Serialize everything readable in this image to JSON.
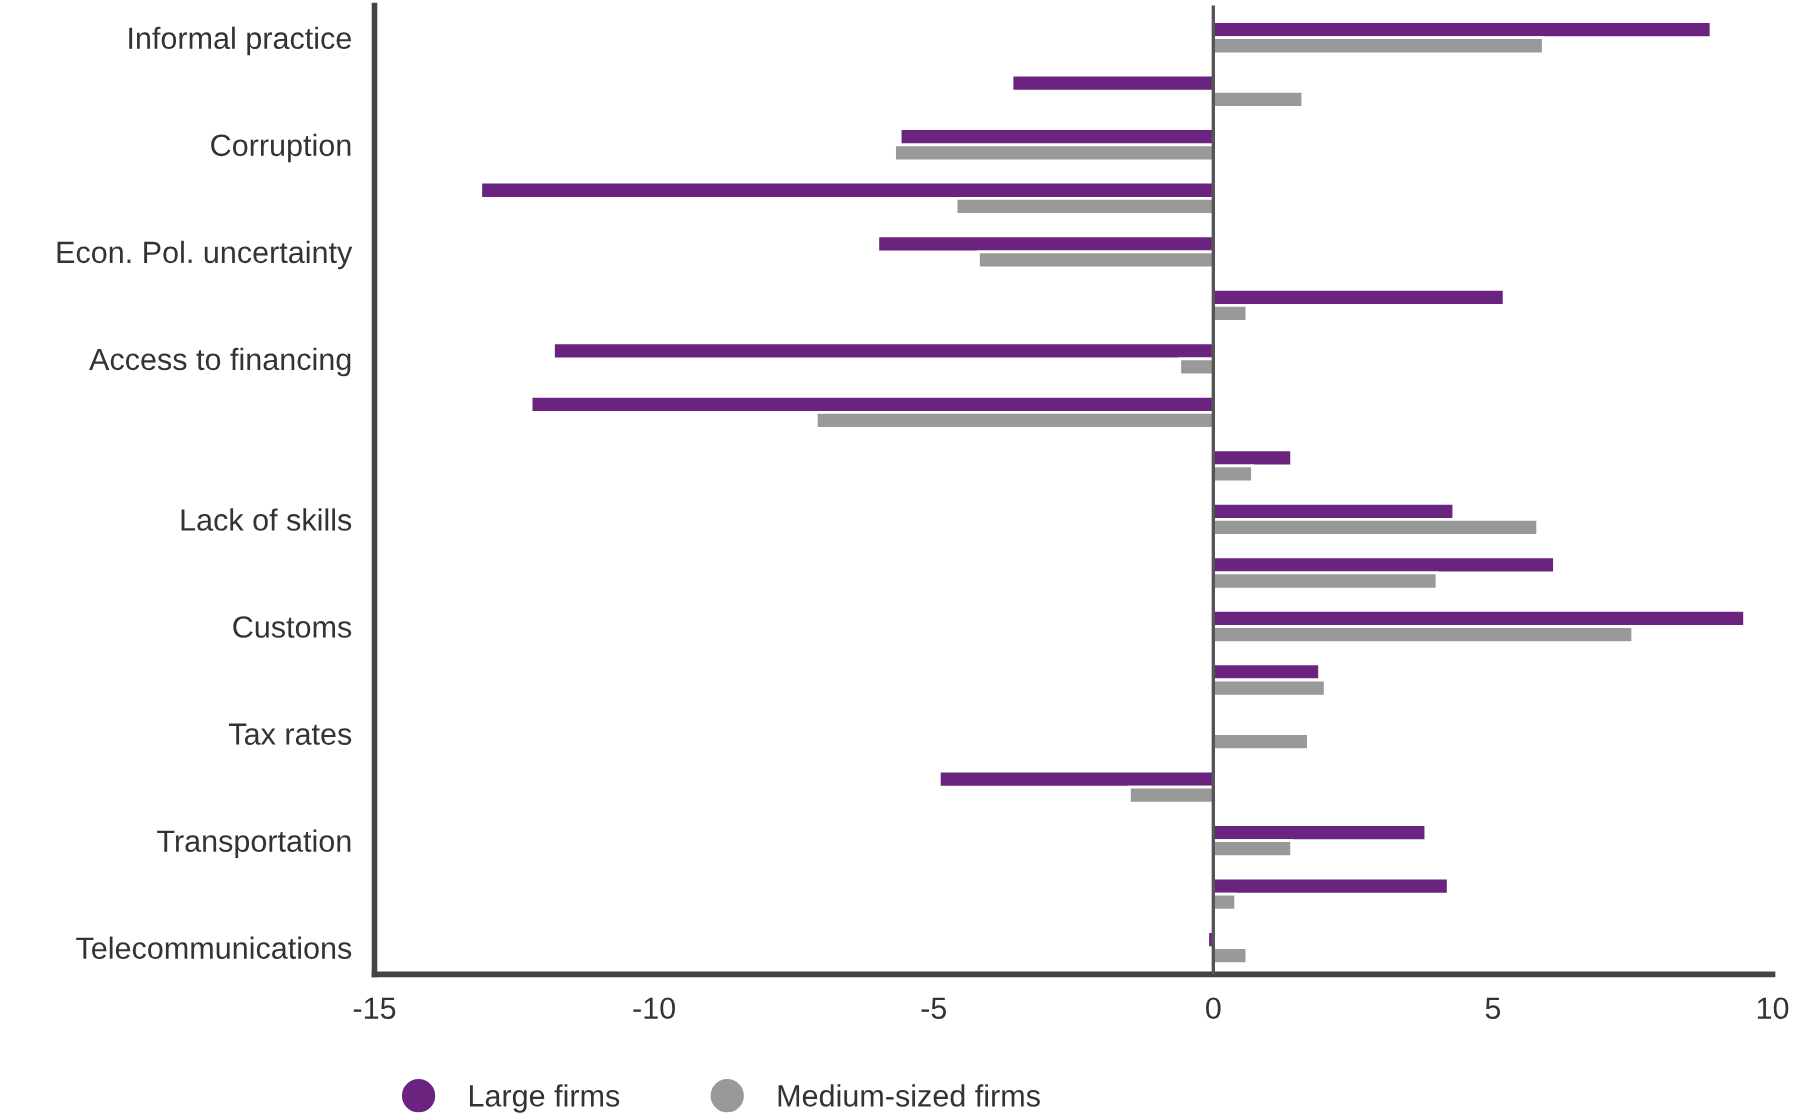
{
  "chart_data": {
    "type": "bar",
    "orientation": "horizontal",
    "categories": [
      "Informal practice",
      null,
      "Corruption",
      null,
      "Econ. Pol. uncertainty",
      null,
      "Access to financing",
      null,
      null,
      "Lack of skills",
      null,
      "Customs",
      null,
      "Tax rates",
      null,
      "Transportation",
      null,
      "Telecommunications"
    ],
    "series": [
      {
        "name": "Large firms",
        "color": "#6b2380",
        "values": [
          8.9,
          -3.6,
          -5.6,
          -13.1,
          -6.0,
          5.2,
          -11.8,
          -12.2,
          1.4,
          4.3,
          6.1,
          9.5,
          1.9,
          -0.05,
          -4.9,
          3.8,
          4.2,
          -0.1
        ]
      },
      {
        "name": "Medium-sized firms",
        "color": "#999999",
        "values": [
          5.9,
          1.6,
          -5.7,
          -4.6,
          -4.2,
          0.6,
          -0.6,
          -7.1,
          0.7,
          5.8,
          4.0,
          7.5,
          2.0,
          1.7,
          -1.5,
          1.4,
          0.4,
          0.6
        ]
      }
    ],
    "xlim": [
      -15,
      10
    ],
    "xticks": [
      -15,
      -10,
      -5,
      0,
      5,
      10
    ],
    "ref_lines": [
      {
        "axis": "x",
        "value": 0,
        "color": "#555555"
      }
    ],
    "grid": false,
    "legend": "bottom"
  }
}
